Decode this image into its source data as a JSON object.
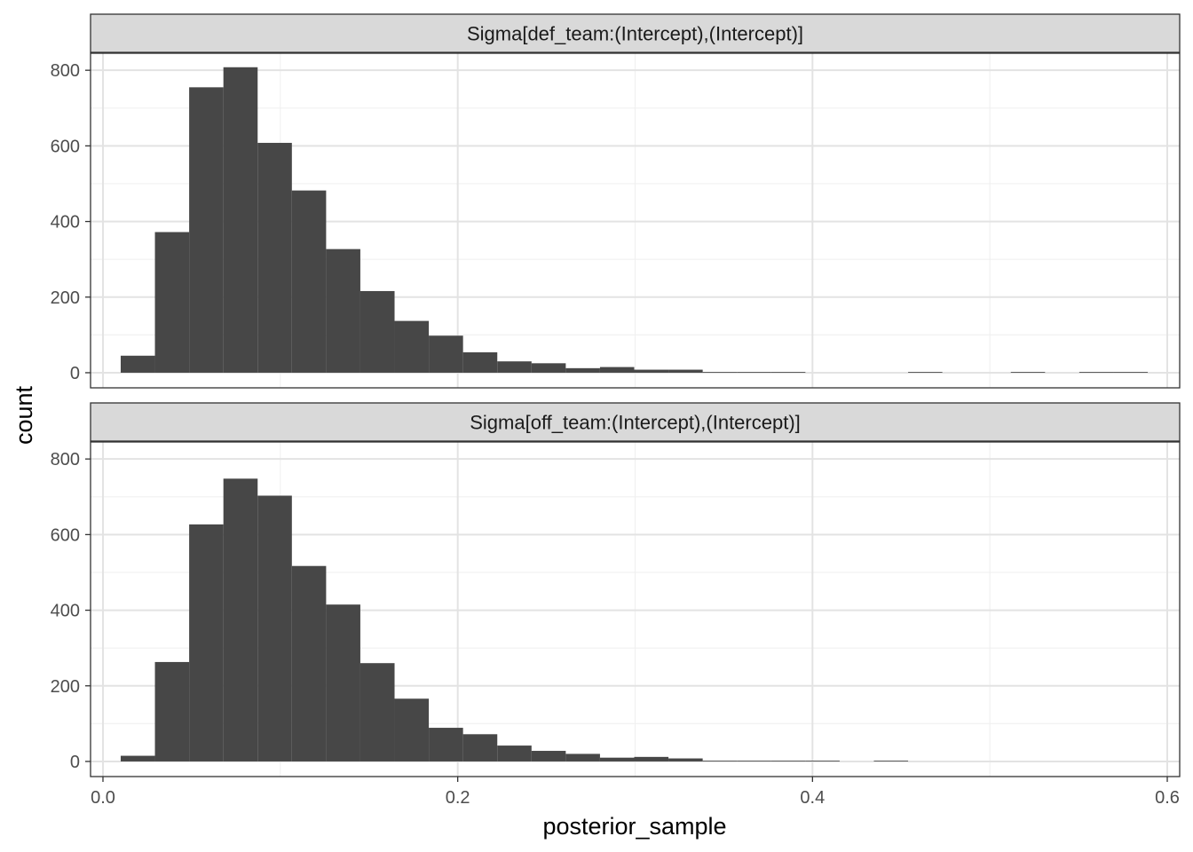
{
  "chart_data": {
    "type": "bar",
    "subtype": "histogram-faceted",
    "xlabel": "posterior_sample",
    "ylabel": "count",
    "xlim": [
      -0.007,
      0.607
    ],
    "ylim": [
      -40,
      845
    ],
    "x_ticks": [
      0.0,
      0.2,
      0.4,
      0.6
    ],
    "x_tick_labels": [
      "0.0",
      "0.2",
      "0.4",
      "0.6"
    ],
    "y_ticks": [
      0,
      200,
      400,
      600,
      800
    ],
    "y_tick_labels": [
      "0",
      "200",
      "400",
      "600",
      "800"
    ],
    "bin_width": 0.0193,
    "bar_color": "#474747",
    "grid": true,
    "facets": [
      {
        "label": "Sigma[def_team:(Intercept),(Intercept)]",
        "bins": [
          {
            "x0": 0.01,
            "x1": 0.0293,
            "count": 45
          },
          {
            "x0": 0.0293,
            "x1": 0.0486,
            "count": 372
          },
          {
            "x0": 0.0486,
            "x1": 0.0679,
            "count": 755
          },
          {
            "x0": 0.0679,
            "x1": 0.0872,
            "count": 808
          },
          {
            "x0": 0.0872,
            "x1": 0.1065,
            "count": 608
          },
          {
            "x0": 0.1065,
            "x1": 0.1258,
            "count": 482
          },
          {
            "x0": 0.1258,
            "x1": 0.1451,
            "count": 327
          },
          {
            "x0": 0.1451,
            "x1": 0.1644,
            "count": 216
          },
          {
            "x0": 0.1644,
            "x1": 0.1837,
            "count": 137
          },
          {
            "x0": 0.1837,
            "x1": 0.203,
            "count": 98
          },
          {
            "x0": 0.203,
            "x1": 0.2223,
            "count": 54
          },
          {
            "x0": 0.2223,
            "x1": 0.2416,
            "count": 30
          },
          {
            "x0": 0.2416,
            "x1": 0.2609,
            "count": 25
          },
          {
            "x0": 0.2609,
            "x1": 0.2802,
            "count": 12
          },
          {
            "x0": 0.2802,
            "x1": 0.2995,
            "count": 15
          },
          {
            "x0": 0.2995,
            "x1": 0.3188,
            "count": 8
          },
          {
            "x0": 0.3188,
            "x1": 0.3381,
            "count": 8
          },
          {
            "x0": 0.3381,
            "x1": 0.3574,
            "count": 2
          },
          {
            "x0": 0.3574,
            "x1": 0.3767,
            "count": 2
          },
          {
            "x0": 0.3767,
            "x1": 0.396,
            "count": 2
          },
          {
            "x0": 0.4539,
            "x1": 0.4732,
            "count": 2
          },
          {
            "x0": 0.5118,
            "x1": 0.5311,
            "count": 2
          },
          {
            "x0": 0.5504,
            "x1": 0.5697,
            "count": 2
          },
          {
            "x0": 0.5697,
            "x1": 0.589,
            "count": 2
          }
        ]
      },
      {
        "label": "Sigma[off_team:(Intercept),(Intercept)]",
        "bins": [
          {
            "x0": 0.01,
            "x1": 0.0293,
            "count": 15
          },
          {
            "x0": 0.0293,
            "x1": 0.0486,
            "count": 263
          },
          {
            "x0": 0.0486,
            "x1": 0.0679,
            "count": 627
          },
          {
            "x0": 0.0679,
            "x1": 0.0872,
            "count": 748
          },
          {
            "x0": 0.0872,
            "x1": 0.1065,
            "count": 703
          },
          {
            "x0": 0.1065,
            "x1": 0.1258,
            "count": 517
          },
          {
            "x0": 0.1258,
            "x1": 0.1451,
            "count": 415
          },
          {
            "x0": 0.1451,
            "x1": 0.1644,
            "count": 260
          },
          {
            "x0": 0.1644,
            "x1": 0.1837,
            "count": 166
          },
          {
            "x0": 0.1837,
            "x1": 0.203,
            "count": 89
          },
          {
            "x0": 0.203,
            "x1": 0.2223,
            "count": 72
          },
          {
            "x0": 0.2223,
            "x1": 0.2416,
            "count": 42
          },
          {
            "x0": 0.2416,
            "x1": 0.2609,
            "count": 28
          },
          {
            "x0": 0.2609,
            "x1": 0.2802,
            "count": 20
          },
          {
            "x0": 0.2802,
            "x1": 0.2995,
            "count": 10
          },
          {
            "x0": 0.2995,
            "x1": 0.3188,
            "count": 12
          },
          {
            "x0": 0.3188,
            "x1": 0.3381,
            "count": 8
          },
          {
            "x0": 0.3381,
            "x1": 0.3574,
            "count": 2
          },
          {
            "x0": 0.3574,
            "x1": 0.3767,
            "count": 2
          },
          {
            "x0": 0.3767,
            "x1": 0.396,
            "count": 2
          },
          {
            "x0": 0.396,
            "x1": 0.4153,
            "count": 2
          },
          {
            "x0": 0.4346,
            "x1": 0.4539,
            "count": 2
          }
        ]
      }
    ]
  }
}
